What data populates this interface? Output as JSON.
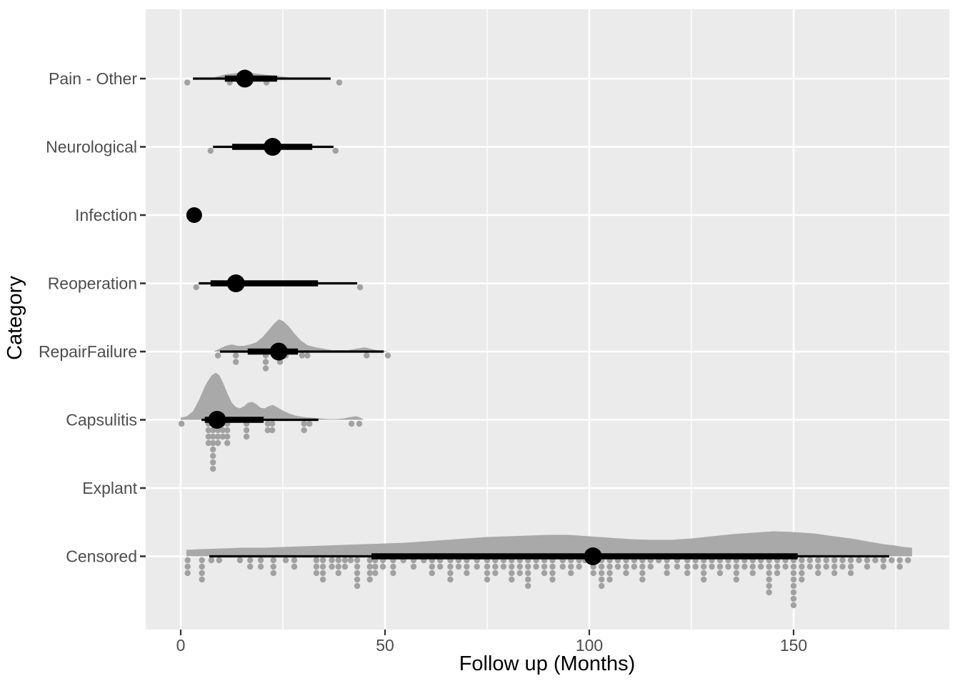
{
  "chart_data": {
    "type": "raincloud",
    "title": "",
    "xlabel": "Follow up (Months)",
    "ylabel": "Category",
    "x_ticks": [
      0,
      50,
      100,
      150
    ],
    "x_tick_labels": [
      "0",
      "50",
      "100",
      "150"
    ],
    "x_minor_ticks": [
      25,
      75,
      125,
      175
    ],
    "xlim": [
      -8.6,
      188
    ],
    "grid": "on",
    "legend": "none",
    "colors": {
      "panel_bg": "#ebebeb",
      "gridline": "#ffffff",
      "density_fill": "#a9a9a9",
      "rain_dot": "#a1a1a1",
      "interval": "#000000",
      "axis_text": "#4d4d4d",
      "axis_title": "#000000",
      "tick_mark": "#333333"
    },
    "categories": [
      "Pain - Other",
      "Neurological",
      "Infection",
      "Reoperation",
      "RepairFailure",
      "Capsulitis",
      "Explant",
      "Censored"
    ],
    "series": [
      {
        "label": "Pain - Other",
        "summary": {
          "min": 3.0,
          "q_lo": 10.8,
          "median": 15.7,
          "q_hi": 23.6,
          "max": 36.7
        },
        "density": [
          [
            7,
            0
          ],
          [
            9,
            3
          ],
          [
            11,
            6
          ],
          [
            14,
            8
          ],
          [
            17,
            8
          ],
          [
            20,
            6
          ],
          [
            23,
            4
          ],
          [
            26,
            2
          ],
          [
            29,
            0
          ]
        ],
        "dots": [
          [
            1.6,
            1
          ],
          [
            12,
            1
          ],
          [
            15.2,
            1
          ],
          [
            21,
            1
          ],
          [
            38.8,
            1
          ]
        ]
      },
      {
        "label": "Neurological",
        "summary": {
          "min": 7.9,
          "q_lo": 12.6,
          "median": 22.5,
          "q_hi": 32.2,
          "max": 37.4
        },
        "density": [],
        "dots": [
          [
            7.3,
            1
          ],
          [
            37.9,
            1
          ]
        ]
      },
      {
        "label": "Infection",
        "summary": {
          "min": 3.3,
          "q_lo": 3.3,
          "median": 3.3,
          "q_hi": 3.3,
          "max": 3.3
        },
        "density": [],
        "dots": []
      },
      {
        "label": "Reoperation",
        "summary": {
          "min": 4.4,
          "q_lo": 7.3,
          "median": 13.5,
          "q_hi": 33.6,
          "max": 43.2
        },
        "density": [],
        "dots": [
          [
            3.8,
            1
          ],
          [
            43.9,
            1
          ]
        ]
      },
      {
        "label": "RepairFailure",
        "summary": {
          "min": 9.6,
          "q_lo": 16.4,
          "median": 24.0,
          "q_hi": 28.7,
          "max": 49.7
        },
        "density": [
          [
            8,
            0
          ],
          [
            9.5,
            4
          ],
          [
            11,
            8
          ],
          [
            12.5,
            10
          ],
          [
            14,
            8
          ],
          [
            15.5,
            8
          ],
          [
            17,
            10
          ],
          [
            18.5,
            13
          ],
          [
            20,
            20
          ],
          [
            21.5,
            30
          ],
          [
            23,
            40
          ],
          [
            24,
            45
          ],
          [
            25,
            43
          ],
          [
            26.5,
            35
          ],
          [
            28,
            24
          ],
          [
            29.5,
            15
          ],
          [
            31,
            9
          ],
          [
            33,
            6
          ],
          [
            35,
            4
          ],
          [
            37,
            2
          ],
          [
            39,
            2
          ],
          [
            41,
            2
          ],
          [
            43,
            4
          ],
          [
            45,
            6
          ],
          [
            46.5,
            4
          ],
          [
            48,
            2
          ],
          [
            50,
            1
          ],
          [
            51,
            0
          ]
        ],
        "dots": [
          [
            9.1,
            1
          ],
          [
            13.5,
            2
          ],
          [
            20.8,
            3
          ],
          [
            24.3,
            2
          ],
          [
            25.7,
            1
          ],
          [
            29.7,
            1
          ],
          [
            31,
            1
          ],
          [
            45.5,
            1
          ],
          [
            50.7,
            1
          ]
        ]
      },
      {
        "label": "Capsulitis",
        "summary": {
          "min": 5.1,
          "q_lo": 5.9,
          "median": 8.9,
          "q_hi": 20.3,
          "max": 33.7
        },
        "density": [
          [
            0,
            3
          ],
          [
            1.5,
            5
          ],
          [
            3,
            12
          ],
          [
            4.5,
            28
          ],
          [
            6,
            48
          ],
          [
            7.5,
            62
          ],
          [
            8.6,
            66
          ],
          [
            9.5,
            62
          ],
          [
            10.5,
            50
          ],
          [
            11.5,
            36
          ],
          [
            12.5,
            24
          ],
          [
            13.5,
            18
          ],
          [
            14.5,
            16
          ],
          [
            15.5,
            19
          ],
          [
            16.5,
            24
          ],
          [
            17.5,
            25
          ],
          [
            18.5,
            22
          ],
          [
            19.5,
            17
          ],
          [
            20.5,
            16
          ],
          [
            21.5,
            19
          ],
          [
            22.5,
            21
          ],
          [
            23.5,
            18
          ],
          [
            25,
            13
          ],
          [
            26.5,
            9
          ],
          [
            28,
            6
          ],
          [
            30,
            4
          ],
          [
            32,
            3
          ],
          [
            34,
            2
          ],
          [
            36,
            1
          ],
          [
            38,
            1
          ],
          [
            40,
            2
          ],
          [
            41.5,
            4
          ],
          [
            43,
            5
          ],
          [
            44,
            3
          ],
          [
            44.8,
            0
          ]
        ],
        "dots": [
          [
            0.2,
            1
          ],
          [
            6.8,
            4
          ],
          [
            7.9,
            8
          ],
          [
            9.1,
            4
          ],
          [
            10.3,
            3
          ],
          [
            11.4,
            4
          ],
          [
            16.1,
            3
          ],
          [
            21.3,
            2
          ],
          [
            22.4,
            2
          ],
          [
            30.2,
            2
          ],
          [
            31.5,
            1
          ],
          [
            41.8,
            1
          ],
          [
            43.7,
            1
          ]
        ]
      },
      {
        "label": "Explant",
        "summary": null,
        "density": [],
        "dots": []
      },
      {
        "label": "Censored",
        "summary": {
          "min": 7.0,
          "q_lo": 46.7,
          "median": 100.9,
          "q_hi": 151.0,
          "max": 173.4
        },
        "density": [
          [
            1.4,
            9
          ],
          [
            5,
            10
          ],
          [
            10,
            11
          ],
          [
            15,
            12
          ],
          [
            20,
            12
          ],
          [
            25,
            13
          ],
          [
            30,
            14
          ],
          [
            35,
            15
          ],
          [
            40,
            16
          ],
          [
            45,
            17
          ],
          [
            50,
            18
          ],
          [
            55,
            19
          ],
          [
            60,
            21
          ],
          [
            65,
            23
          ],
          [
            70,
            25
          ],
          [
            75,
            27
          ],
          [
            80,
            28
          ],
          [
            85,
            29
          ],
          [
            90,
            30
          ],
          [
            95,
            30
          ],
          [
            100,
            28
          ],
          [
            105,
            26
          ],
          [
            110,
            24
          ],
          [
            115,
            23
          ],
          [
            120,
            23
          ],
          [
            125,
            25
          ],
          [
            130,
            28
          ],
          [
            135,
            31
          ],
          [
            140,
            33
          ],
          [
            145,
            35
          ],
          [
            150,
            34
          ],
          [
            155,
            32
          ],
          [
            160,
            28
          ],
          [
            164,
            25
          ],
          [
            168,
            21
          ],
          [
            172,
            17
          ],
          [
            175,
            15
          ],
          [
            177,
            13
          ],
          [
            179,
            12
          ]
        ],
        "dots": [
          [
            1.7,
            3
          ],
          [
            5.2,
            4
          ],
          [
            7.5,
            1
          ],
          [
            9.4,
            1
          ],
          [
            14.5,
            1
          ],
          [
            17,
            2
          ],
          [
            19.6,
            2
          ],
          [
            22.7,
            3
          ],
          [
            25.7,
            1
          ],
          [
            27.8,
            2
          ],
          [
            33.2,
            3
          ],
          [
            34.8,
            4
          ],
          [
            37,
            2
          ],
          [
            38.6,
            3
          ],
          [
            40.2,
            2
          ],
          [
            41.6,
            1
          ],
          [
            43.2,
            5
          ],
          [
            46.3,
            4
          ],
          [
            47.6,
            3
          ],
          [
            49.5,
            2
          ],
          [
            52,
            3
          ],
          [
            54.5,
            1
          ],
          [
            57,
            2
          ],
          [
            59.5,
            1
          ],
          [
            61.5,
            3
          ],
          [
            63.5,
            2
          ],
          [
            66,
            4
          ],
          [
            68,
            2
          ],
          [
            70,
            3
          ],
          [
            72.5,
            2
          ],
          [
            75,
            4
          ],
          [
            77,
            3
          ],
          [
            79,
            2
          ],
          [
            81,
            4
          ],
          [
            83,
            3
          ],
          [
            85,
            5
          ],
          [
            87,
            2
          ],
          [
            89,
            3
          ],
          [
            91,
            4
          ],
          [
            93.5,
            2
          ],
          [
            95.5,
            3
          ],
          [
            97.5,
            2
          ],
          [
            99,
            1
          ],
          [
            101,
            3
          ],
          [
            103,
            5
          ],
          [
            105,
            4
          ],
          [
            107,
            2
          ],
          [
            109,
            3
          ],
          [
            111,
            2
          ],
          [
            113,
            4
          ],
          [
            115,
            2
          ],
          [
            117,
            1
          ],
          [
            119,
            3
          ],
          [
            121.5,
            2
          ],
          [
            124,
            3
          ],
          [
            126,
            2
          ],
          [
            128,
            4
          ],
          [
            130,
            2
          ],
          [
            132,
            3
          ],
          [
            134,
            2
          ],
          [
            136,
            4
          ],
          [
            138,
            2
          ],
          [
            140,
            3
          ],
          [
            142,
            2
          ],
          [
            144,
            6
          ],
          [
            146,
            3
          ],
          [
            148,
            2
          ],
          [
            150,
            8
          ],
          [
            152,
            4
          ],
          [
            154,
            2
          ],
          [
            156,
            3
          ],
          [
            158,
            2
          ],
          [
            160,
            3
          ],
          [
            162,
            2
          ],
          [
            164,
            3
          ],
          [
            166,
            1
          ],
          [
            168,
            2
          ],
          [
            170,
            1
          ],
          [
            172,
            2
          ],
          [
            174,
            1
          ],
          [
            176,
            2
          ],
          [
            178,
            1
          ]
        ]
      }
    ]
  }
}
